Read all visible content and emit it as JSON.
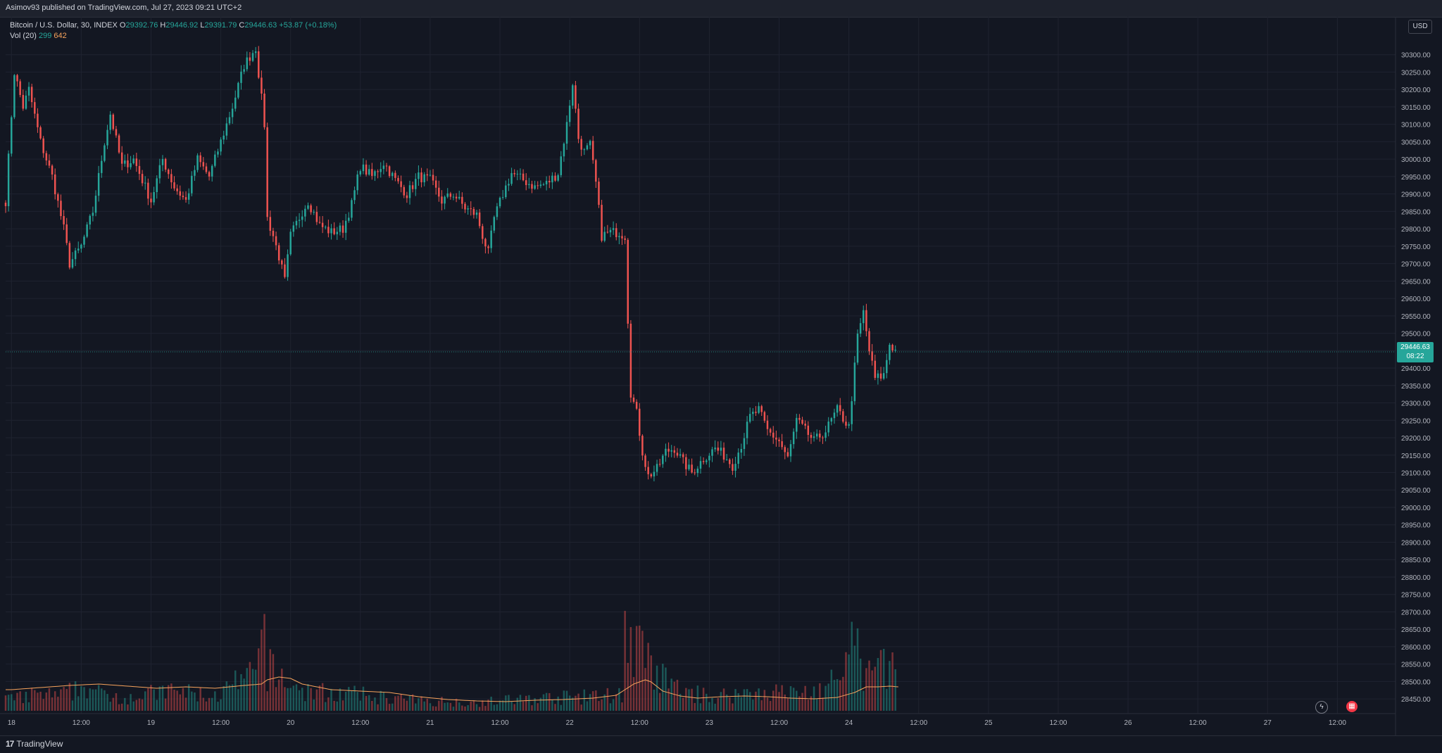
{
  "header": {
    "published": "Asimov93 published on TradingView.com, Jul 27, 2023 09:21 UTC+2"
  },
  "legend": {
    "symbol": "Bitcoin / U.S. Dollar, 30, INDEX",
    "o_label": "O",
    "o_value": "29392.76",
    "h_label": "H",
    "h_value": "29446.92",
    "l_label": "L",
    "l_value": "29391.79",
    "c_label": "C",
    "c_value": "29446.63",
    "change": "+53.87 (+0.18%)",
    "vol_label": "Vol (20)",
    "vol_value": "299",
    "vol_ma": "642"
  },
  "currency": "USD",
  "last_price": {
    "value": "29446.63",
    "countdown": "08:22"
  },
  "footer": {
    "brand": "TradingView",
    "brand_mark": "17"
  },
  "icons": {
    "lightning": "lightning-icon",
    "calendar": "calendar-icon"
  },
  "colors": {
    "background": "#131722",
    "up": "#26a69a",
    "down": "#ef5350",
    "volume_ma": "#f7a35c",
    "grid": "#1f2330",
    "axis_text": "#b2b5be"
  },
  "chart_data": {
    "type": "candlestick",
    "timeframe": "30",
    "grid": true,
    "ylim": [
      28420,
      30360
    ],
    "y_ticks": [
      30300,
      30250,
      30200,
      30150,
      30100,
      30050,
      30000,
      29950,
      29900,
      29850,
      29800,
      29750,
      29700,
      29650,
      29600,
      29550,
      29500,
      29450,
      29400,
      29350,
      29300,
      29250,
      29200,
      29150,
      29100,
      29050,
      29000,
      28950,
      28900,
      28850,
      28800,
      28750,
      28700,
      28650,
      28600,
      28550,
      28500,
      28450
    ],
    "x_ticks": [
      {
        "label": "18",
        "h": 0
      },
      {
        "label": "12:00",
        "h": 12
      },
      {
        "label": "19",
        "h": 24
      },
      {
        "label": "12:00",
        "h": 36
      },
      {
        "label": "20",
        "h": 48
      },
      {
        "label": "12:00",
        "h": 60
      },
      {
        "label": "21",
        "h": 72
      },
      {
        "label": "12:00",
        "h": 84
      },
      {
        "label": "22",
        "h": 96
      },
      {
        "label": "12:00",
        "h": 108
      },
      {
        "label": "23",
        "h": 120
      },
      {
        "label": "12:00",
        "h": 132
      },
      {
        "label": "24",
        "h": 144
      },
      {
        "label": "12:00",
        "h": 156
      },
      {
        "label": "25",
        "h": 168
      },
      {
        "label": "12:00",
        "h": 180
      },
      {
        "label": "26",
        "h": 192
      },
      {
        "label": "12:00",
        "h": 204
      },
      {
        "label": "27",
        "h": 216
      },
      {
        "label": "12:00",
        "h": 228
      }
    ],
    "price_anchors": [
      [
        -1,
        29880
      ],
      [
        0.5,
        30250
      ],
      [
        2,
        30150
      ],
      [
        3,
        30200
      ],
      [
        5,
        30050
      ],
      [
        7,
        29950
      ],
      [
        9,
        29800
      ],
      [
        10,
        29700
      ],
      [
        12,
        29750
      ],
      [
        14,
        29850
      ],
      [
        16,
        30050
      ],
      [
        17,
        30130
      ],
      [
        19,
        29980
      ],
      [
        21,
        30000
      ],
      [
        24,
        29880
      ],
      [
        26,
        30000
      ],
      [
        28,
        29920
      ],
      [
        30,
        29880
      ],
      [
        32,
        30000
      ],
      [
        34,
        29950
      ],
      [
        36,
        30050
      ],
      [
        38,
        30150
      ],
      [
        40,
        30270
      ],
      [
        42,
        30320
      ],
      [
        43.5,
        30100
      ],
      [
        44,
        29830
      ],
      [
        45,
        29780
      ],
      [
        46,
        29720
      ],
      [
        47,
        29650
      ],
      [
        48,
        29780
      ],
      [
        50,
        29850
      ],
      [
        51,
        29880
      ],
      [
        53,
        29810
      ],
      [
        55,
        29790
      ],
      [
        57,
        29800
      ],
      [
        58.5,
        29870
      ],
      [
        60,
        29980
      ],
      [
        62,
        29950
      ],
      [
        64,
        29990
      ],
      [
        66,
        29940
      ],
      [
        68,
        29900
      ],
      [
        70,
        29950
      ],
      [
        72,
        29940
      ],
      [
        74,
        29880
      ],
      [
        76,
        29900
      ],
      [
        78,
        29860
      ],
      [
        80,
        29840
      ],
      [
        81,
        29780
      ],
      [
        82,
        29730
      ],
      [
        83,
        29830
      ],
      [
        84.5,
        29900
      ],
      [
        86,
        29960
      ],
      [
        88,
        29940
      ],
      [
        90,
        29920
      ],
      [
        92,
        29930
      ],
      [
        94,
        29960
      ],
      [
        95.5,
        30100
      ],
      [
        96.5,
        30220
      ],
      [
        97.5,
        30060
      ],
      [
        98.5,
        30020
      ],
      [
        99.5,
        30040
      ],
      [
        100.5,
        29930
      ],
      [
        101.5,
        29780
      ],
      [
        103,
        29790
      ],
      [
        104.5,
        29790
      ],
      [
        105.5,
        29780
      ],
      [
        106,
        29540
      ],
      [
        106.5,
        29330
      ],
      [
        107.5,
        29270
      ],
      [
        108.5,
        29160
      ],
      [
        109.5,
        29090
      ],
      [
        111,
        29110
      ],
      [
        112.5,
        29160
      ],
      [
        114,
        29170
      ],
      [
        115.5,
        29130
      ],
      [
        117,
        29100
      ],
      [
        119,
        29140
      ],
      [
        121,
        29170
      ],
      [
        122.5,
        29150
      ],
      [
        124,
        29120
      ],
      [
        125.5,
        29180
      ],
      [
        127,
        29260
      ],
      [
        128.5,
        29280
      ],
      [
        130,
        29220
      ],
      [
        132,
        29190
      ],
      [
        133.5,
        29140
      ],
      [
        135,
        29250
      ],
      [
        136.5,
        29220
      ],
      [
        138,
        29190
      ],
      [
        140,
        29220
      ],
      [
        142,
        29280
      ],
      [
        144,
        29230
      ],
      [
        145.5,
        29490
      ],
      [
        146.5,
        29560
      ],
      [
        147.5,
        29450
      ],
      [
        148.5,
        29370
      ],
      [
        150,
        29380
      ],
      [
        151,
        29470
      ],
      [
        152.5,
        29440
      ]
    ],
    "volume_profile": [
      [
        0,
        20
      ],
      [
        5,
        30
      ],
      [
        8,
        25
      ],
      [
        13,
        45
      ],
      [
        15,
        30
      ],
      [
        20,
        25
      ],
      [
        28,
        35
      ],
      [
        35,
        25
      ],
      [
        40,
        55
      ],
      [
        42,
        60
      ],
      [
        43.5,
        150
      ],
      [
        44,
        75
      ],
      [
        46,
        60
      ],
      [
        50,
        35
      ],
      [
        60,
        28
      ],
      [
        70,
        18
      ],
      [
        80,
        15
      ],
      [
        90,
        22
      ],
      [
        100,
        25
      ],
      [
        105,
        30
      ],
      [
        105.5,
        170
      ],
      [
        106,
        120
      ],
      [
        107,
        95
      ],
      [
        108,
        110
      ],
      [
        110,
        70
      ],
      [
        115,
        35
      ],
      [
        120,
        25
      ],
      [
        125,
        30
      ],
      [
        130,
        35
      ],
      [
        135,
        30
      ],
      [
        140,
        40
      ],
      [
        142,
        60
      ],
      [
        144,
        70
      ],
      [
        145,
        160
      ],
      [
        146,
        70
      ],
      [
        148,
        65
      ],
      [
        150,
        90
      ],
      [
        151,
        80
      ],
      [
        152.5,
        60
      ]
    ],
    "volume_ma_profile": [
      [
        0,
        22
      ],
      [
        5,
        25
      ],
      [
        10,
        28
      ],
      [
        15,
        30
      ],
      [
        20,
        27
      ],
      [
        25,
        24
      ],
      [
        30,
        26
      ],
      [
        35,
        24
      ],
      [
        40,
        28
      ],
      [
        43,
        30
      ],
      [
        44,
        36
      ],
      [
        46,
        40
      ],
      [
        48,
        38
      ],
      [
        50,
        30
      ],
      [
        55,
        22
      ],
      [
        60,
        20
      ],
      [
        65,
        18
      ],
      [
        70,
        12
      ],
      [
        75,
        8
      ],
      [
        80,
        6
      ],
      [
        85,
        5
      ],
      [
        90,
        7
      ],
      [
        95,
        8
      ],
      [
        100,
        10
      ],
      [
        104,
        14
      ],
      [
        105.5,
        22
      ],
      [
        107,
        30
      ],
      [
        109,
        36
      ],
      [
        110,
        33
      ],
      [
        112,
        20
      ],
      [
        115,
        13
      ],
      [
        118,
        10
      ],
      [
        122,
        12
      ],
      [
        126,
        13
      ],
      [
        130,
        12
      ],
      [
        134,
        10
      ],
      [
        138,
        9
      ],
      [
        142,
        11
      ],
      [
        145,
        18
      ],
      [
        147,
        26
      ],
      [
        149,
        26
      ],
      [
        151,
        27
      ],
      [
        152.5,
        26
      ]
    ],
    "x_range_hours": [
      -1,
      238
    ]
  }
}
